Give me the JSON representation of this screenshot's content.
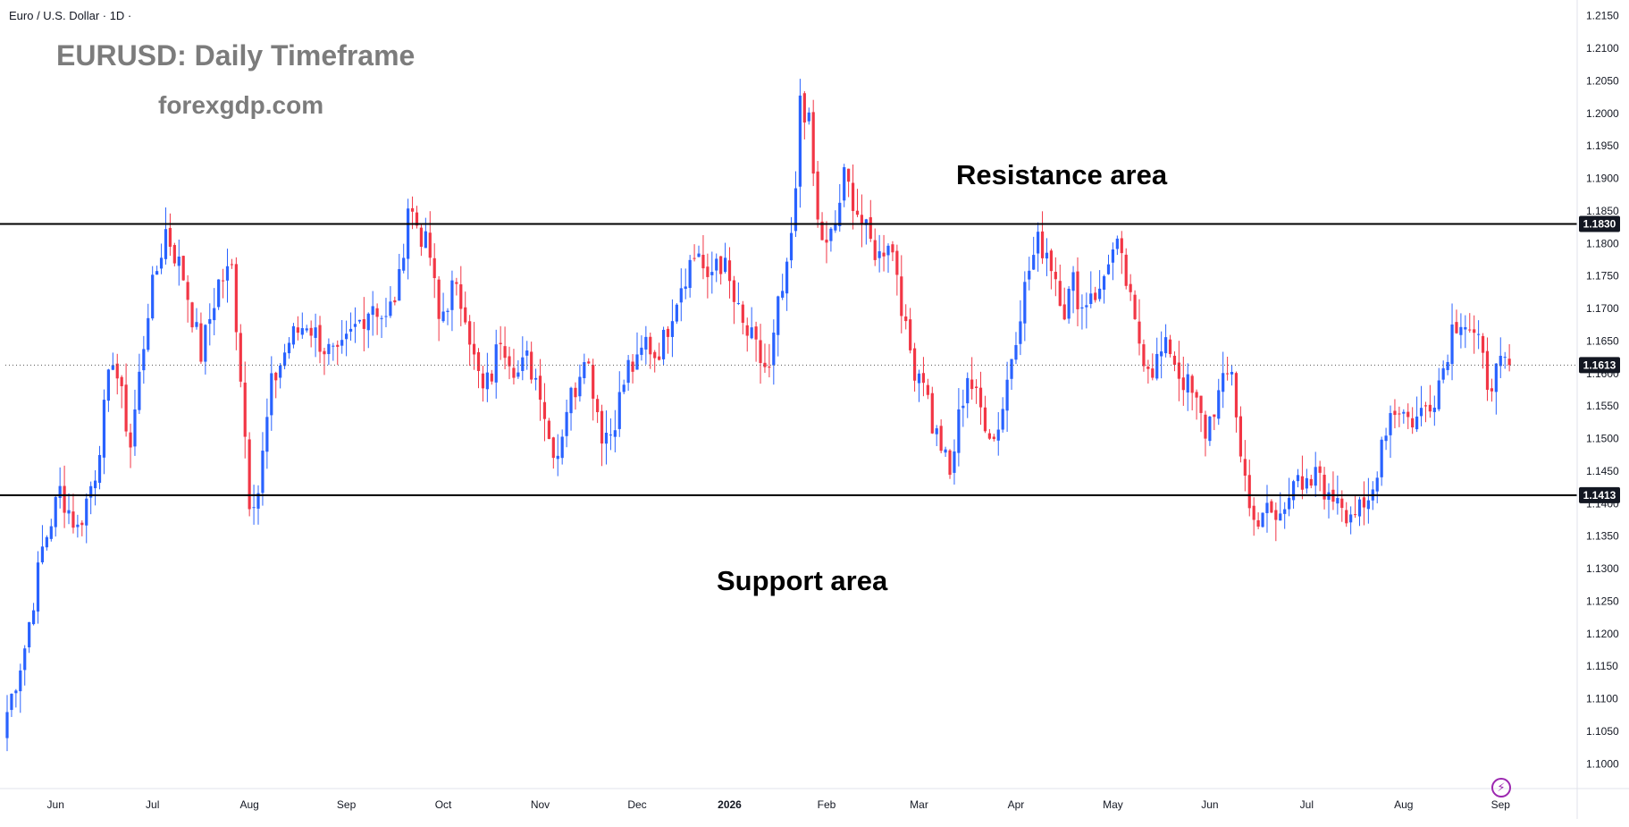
{
  "header": {
    "symbol_label": "Euro / U.S. Dollar · 1D ·",
    "watermark_title": "EURUSD: Daily Timeframe",
    "watermark_site": "forexgdp.com"
  },
  "annotations": {
    "resistance_label": "Resistance area",
    "support_label": "Support area"
  },
  "colors": {
    "up": "#2962ff",
    "down": "#f23645",
    "level_line": "#000000",
    "axis_text": "#131722",
    "grid_border": "#e0e3eb",
    "badge_bg": "#131722",
    "bolt": "#9c27b0"
  },
  "icons": {
    "bolt": "lightning-icon"
  },
  "chart_data": {
    "type": "candlestick",
    "title": "EURUSD: Daily Timeframe",
    "timeframe": "1D",
    "ylim": [
      1.0962,
      1.2166
    ],
    "y_ticks": [
      "1.1000",
      "1.1050",
      "1.1100",
      "1.1150",
      "1.1200",
      "1.1250",
      "1.1300",
      "1.1350",
      "1.1400",
      "1.1450",
      "1.1500",
      "1.1550",
      "1.1600",
      "1.1650",
      "1.1700",
      "1.1750",
      "1.1800",
      "1.1850",
      "1.1900",
      "1.1950",
      "1.2000",
      "1.2050",
      "1.2100",
      "1.2150"
    ],
    "x_ticks": [
      {
        "label": "Jun",
        "bar": 11
      },
      {
        "label": "Jul",
        "bar": 33
      },
      {
        "label": "Aug",
        "bar": 55
      },
      {
        "label": "Sep",
        "bar": 77
      },
      {
        "label": "Oct",
        "bar": 99
      },
      {
        "label": "Nov",
        "bar": 121
      },
      {
        "label": "Dec",
        "bar": 143
      },
      {
        "label": "2026",
        "bar": 164
      },
      {
        "label": "Feb",
        "bar": 186
      },
      {
        "label": "Mar",
        "bar": 207
      },
      {
        "label": "Apr",
        "bar": 229
      },
      {
        "label": "May",
        "bar": 251
      },
      {
        "label": "Jun",
        "bar": 273
      },
      {
        "label": "Jul",
        "bar": 295
      },
      {
        "label": "Aug",
        "bar": 317
      },
      {
        "label": "Sep",
        "bar": 339
      }
    ],
    "levels": [
      {
        "name": "resistance",
        "value": 1.183,
        "label": "1.1830"
      },
      {
        "name": "support",
        "value": 1.1413,
        "label": "1.1413"
      }
    ],
    "last_price": 1.1613,
    "last_price_label": "1.1613",
    "anchors": [
      [
        0,
        1.108
      ],
      [
        4,
        1.118
      ],
      [
        8,
        1.133
      ],
      [
        12,
        1.142
      ],
      [
        16,
        1.136
      ],
      [
        20,
        1.145
      ],
      [
        24,
        1.163
      ],
      [
        28,
        1.149
      ],
      [
        32,
        1.17
      ],
      [
        36,
        1.182
      ],
      [
        40,
        1.175
      ],
      [
        44,
        1.163
      ],
      [
        48,
        1.174
      ],
      [
        51,
        1.176
      ],
      [
        53,
        1.16
      ],
      [
        55,
        1.141
      ],
      [
        57,
        1.142
      ],
      [
        60,
        1.158
      ],
      [
        64,
        1.165
      ],
      [
        68,
        1.168
      ],
      [
        72,
        1.164
      ],
      [
        75,
        1.162
      ],
      [
        79,
        1.167
      ],
      [
        83,
        1.171
      ],
      [
        86,
        1.168
      ],
      [
        89,
        1.174
      ],
      [
        91,
        1.186
      ],
      [
        93,
        1.183
      ],
      [
        96,
        1.178
      ],
      [
        98,
        1.168
      ],
      [
        101,
        1.173
      ],
      [
        104,
        1.17
      ],
      [
        106,
        1.162
      ],
      [
        108,
        1.157
      ],
      [
        110,
        1.16
      ],
      [
        112,
        1.166
      ],
      [
        114,
        1.163
      ],
      [
        116,
        1.16
      ],
      [
        118,
        1.162
      ],
      [
        121,
        1.158
      ],
      [
        123,
        1.15
      ],
      [
        125,
        1.148
      ],
      [
        127,
        1.155
      ],
      [
        129,
        1.158
      ],
      [
        131,
        1.164
      ],
      [
        133,
        1.158
      ],
      [
        135,
        1.151
      ],
      [
        137,
        1.151
      ],
      [
        139,
        1.156
      ],
      [
        141,
        1.161
      ],
      [
        143,
        1.161
      ],
      [
        145,
        1.165
      ],
      [
        147,
        1.163
      ],
      [
        149,
        1.165
      ],
      [
        151,
        1.17
      ],
      [
        153,
        1.174
      ],
      [
        155,
        1.177
      ],
      [
        157,
        1.179
      ],
      [
        159,
        1.173
      ],
      [
        161,
        1.178
      ],
      [
        163,
        1.176
      ],
      [
        165,
        1.171
      ],
      [
        167,
        1.167
      ],
      [
        169,
        1.165
      ],
      [
        171,
        1.162
      ],
      [
        173,
        1.16
      ],
      [
        175,
        1.17
      ],
      [
        177,
        1.175
      ],
      [
        179,
        1.187
      ],
      [
        180,
        1.203
      ],
      [
        182,
        1.198
      ],
      [
        184,
        1.183
      ],
      [
        186,
        1.179
      ],
      [
        188,
        1.183
      ],
      [
        190,
        1.19
      ],
      [
        192,
        1.187
      ],
      [
        194,
        1.183
      ],
      [
        196,
        1.18
      ],
      [
        198,
        1.178
      ],
      [
        200,
        1.181
      ],
      [
        202,
        1.176
      ],
      [
        204,
        1.166
      ],
      [
        206,
        1.161
      ],
      [
        208,
        1.16
      ],
      [
        210,
        1.152
      ],
      [
        212,
        1.149
      ],
      [
        214,
        1.144
      ],
      [
        216,
        1.153
      ],
      [
        218,
        1.16
      ],
      [
        220,
        1.156
      ],
      [
        222,
        1.153
      ],
      [
        224,
        1.15
      ],
      [
        226,
        1.155
      ],
      [
        228,
        1.163
      ],
      [
        230,
        1.17
      ],
      [
        232,
        1.176
      ],
      [
        234,
        1.18
      ],
      [
        236,
        1.179
      ],
      [
        238,
        1.175
      ],
      [
        240,
        1.17
      ],
      [
        242,
        1.174
      ],
      [
        244,
        1.17
      ],
      [
        246,
        1.173
      ],
      [
        248,
        1.172
      ],
      [
        250,
        1.178
      ],
      [
        252,
        1.179
      ],
      [
        254,
        1.174
      ],
      [
        256,
        1.167
      ],
      [
        258,
        1.163
      ],
      [
        260,
        1.161
      ],
      [
        262,
        1.163
      ],
      [
        264,
        1.164
      ],
      [
        266,
        1.16
      ],
      [
        268,
        1.158
      ],
      [
        270,
        1.155
      ],
      [
        272,
        1.151
      ],
      [
        274,
        1.155
      ],
      [
        276,
        1.158
      ],
      [
        278,
        1.161
      ],
      [
        280,
        1.147
      ],
      [
        282,
        1.141
      ],
      [
        284,
        1.135
      ],
      [
        286,
        1.14
      ],
      [
        288,
        1.137
      ],
      [
        290,
        1.141
      ],
      [
        292,
        1.144
      ],
      [
        294,
        1.141
      ],
      [
        296,
        1.143
      ],
      [
        298,
        1.145
      ],
      [
        300,
        1.14
      ],
      [
        302,
        1.142
      ],
      [
        304,
        1.139
      ],
      [
        306,
        1.139
      ],
      [
        308,
        1.138
      ],
      [
        310,
        1.142
      ],
      [
        312,
        1.15
      ],
      [
        314,
        1.154
      ],
      [
        316,
        1.155
      ],
      [
        318,
        1.153
      ],
      [
        320,
        1.153
      ],
      [
        322,
        1.155
      ],
      [
        324,
        1.157
      ],
      [
        326,
        1.161
      ],
      [
        328,
        1.167
      ],
      [
        330,
        1.169
      ],
      [
        332,
        1.167
      ],
      [
        334,
        1.164
      ],
      [
        336,
        1.159
      ],
      [
        338,
        1.16
      ],
      [
        340,
        1.161
      ],
      [
        341,
        1.1613
      ]
    ]
  }
}
